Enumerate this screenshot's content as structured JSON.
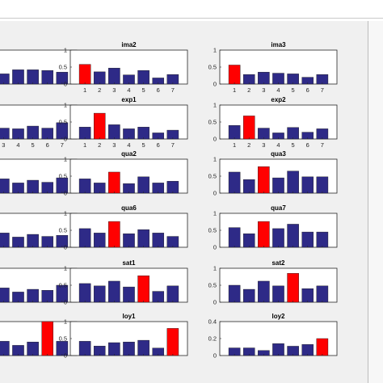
{
  "colors": {
    "bar": "#2e2a87",
    "highlight": "#ff0000",
    "axes": "#262626",
    "figure_bg": "#f0f0f0"
  },
  "chart_data": [
    {
      "type": "bar",
      "title": "",
      "categories": [
        "1",
        "2",
        "3",
        "4",
        "5",
        "6",
        "7"
      ],
      "values": [
        0.5,
        0.38,
        0.3,
        0.42,
        0.42,
        0.4,
        0.35
      ],
      "highlight_index": -1,
      "ylim": [
        0,
        1
      ],
      "yticks": [],
      "show_xticks": false
    },
    {
      "type": "bar",
      "title": "ima2",
      "categories": [
        "1",
        "2",
        "3",
        "4",
        "5",
        "6",
        "7"
      ],
      "values": [
        0.58,
        0.36,
        0.47,
        0.27,
        0.4,
        0.18,
        0.28
      ],
      "highlight_index": 0,
      "ylim": [
        0,
        1
      ],
      "yticks": [
        "0",
        "0.5",
        "1"
      ],
      "show_xticks": true
    },
    {
      "type": "bar",
      "title": "ima3",
      "categories": [
        "1",
        "2",
        "3",
        "4",
        "5",
        "6",
        "7"
      ],
      "values": [
        0.56,
        0.28,
        0.35,
        0.32,
        0.3,
        0.2,
        0.28
      ],
      "highlight_index": 0,
      "ylim": [
        0,
        1
      ],
      "yticks": [
        "0",
        "0.5",
        "1"
      ],
      "show_xticks": true
    },
    {
      "type": "bar",
      "title": "",
      "categories": [
        "1",
        "2",
        "3",
        "4",
        "5",
        "6",
        "7"
      ],
      "values": [
        0.45,
        0.4,
        0.32,
        0.3,
        0.38,
        0.32,
        0.48
      ],
      "highlight_index": -1,
      "ylim": [
        0,
        1
      ],
      "yticks": [],
      "show_xticks": true
    },
    {
      "type": "bar",
      "title": "exp1",
      "categories": [
        "1",
        "2",
        "3",
        "4",
        "5",
        "6",
        "7"
      ],
      "values": [
        0.35,
        0.76,
        0.42,
        0.3,
        0.35,
        0.18,
        0.26
      ],
      "highlight_index": 1,
      "ylim": [
        0,
        1
      ],
      "yticks": [
        "0",
        "0.5",
        "1"
      ],
      "show_xticks": true
    },
    {
      "type": "bar",
      "title": "exp2",
      "categories": [
        "1",
        "2",
        "3",
        "4",
        "5",
        "6",
        "7"
      ],
      "values": [
        0.4,
        0.68,
        0.32,
        0.18,
        0.34,
        0.2,
        0.3
      ],
      "highlight_index": 1,
      "ylim": [
        0,
        1
      ],
      "yticks": [
        "0",
        "0.5",
        "1"
      ],
      "show_xticks": true
    },
    {
      "type": "bar",
      "title": "",
      "categories": [
        "1",
        "2",
        "3",
        "4",
        "5",
        "6",
        "7"
      ],
      "values": [
        0.45,
        0.4,
        0.42,
        0.3,
        0.38,
        0.32,
        0.45
      ],
      "highlight_index": -1,
      "ylim": [
        0,
        1
      ],
      "yticks": [],
      "show_xticks": false
    },
    {
      "type": "bar",
      "title": "qua2",
      "categories": [
        "1",
        "2",
        "3",
        "4",
        "5",
        "6",
        "7"
      ],
      "values": [
        0.42,
        0.3,
        0.62,
        0.28,
        0.48,
        0.3,
        0.35
      ],
      "highlight_index": 2,
      "ylim": [
        0,
        1
      ],
      "yticks": [
        "0",
        "0.5",
        "1"
      ],
      "show_xticks": false
    },
    {
      "type": "bar",
      "title": "qua3",
      "categories": [
        "1",
        "2",
        "3",
        "4",
        "5",
        "6",
        "7"
      ],
      "values": [
        0.62,
        0.4,
        0.78,
        0.45,
        0.65,
        0.48,
        0.48
      ],
      "highlight_index": 2,
      "ylim": [
        0,
        1
      ],
      "yticks": [
        "0",
        "0.5",
        "1"
      ],
      "show_xticks": false
    },
    {
      "type": "bar",
      "title": "",
      "categories": [
        "1",
        "2",
        "3",
        "4",
        "5",
        "6",
        "7"
      ],
      "values": [
        0.45,
        0.4,
        0.42,
        0.3,
        0.38,
        0.32,
        0.35
      ],
      "highlight_index": -1,
      "ylim": [
        0,
        1
      ],
      "yticks": [],
      "show_xticks": false
    },
    {
      "type": "bar",
      "title": "qua6",
      "categories": [
        "1",
        "2",
        "3",
        "4",
        "5",
        "6",
        "7"
      ],
      "values": [
        0.55,
        0.42,
        0.76,
        0.4,
        0.52,
        0.42,
        0.32
      ],
      "highlight_index": 2,
      "ylim": [
        0,
        1
      ],
      "yticks": [
        "0",
        "0.5",
        "1"
      ],
      "show_xticks": false
    },
    {
      "type": "bar",
      "title": "qua7",
      "categories": [
        "1",
        "2",
        "3",
        "4",
        "5",
        "6",
        "7"
      ],
      "values": [
        0.58,
        0.4,
        0.76,
        0.55,
        0.68,
        0.45,
        0.45
      ],
      "highlight_index": 2,
      "ylim": [
        0,
        1
      ],
      "yticks": [
        "0",
        "0.5",
        "1"
      ],
      "show_xticks": false
    },
    {
      "type": "bar",
      "title": "",
      "categories": [
        "1",
        "2",
        "3",
        "4",
        "5",
        "6",
        "7"
      ],
      "values": [
        0.45,
        0.4,
        0.42,
        0.3,
        0.38,
        0.35,
        0.5
      ],
      "highlight_index": -1,
      "ylim": [
        0,
        1
      ],
      "yticks": [],
      "show_xticks": false
    },
    {
      "type": "bar",
      "title": "sat1",
      "categories": [
        "1",
        "2",
        "3",
        "4",
        "5",
        "6",
        "7"
      ],
      "values": [
        0.55,
        0.48,
        0.62,
        0.45,
        0.78,
        0.32,
        0.48
      ],
      "highlight_index": 4,
      "ylim": [
        0,
        1
      ],
      "yticks": [
        "0",
        "0.5",
        "1"
      ],
      "show_xticks": false
    },
    {
      "type": "bar",
      "title": "sat2",
      "categories": [
        "1",
        "2",
        "3",
        "4",
        "5",
        "6",
        "7"
      ],
      "values": [
        0.5,
        0.38,
        0.62,
        0.48,
        0.85,
        0.4,
        0.48
      ],
      "highlight_index": 4,
      "ylim": [
        0,
        1
      ],
      "yticks": [
        "0",
        "0.5",
        "1"
      ],
      "show_xticks": false
    },
    {
      "type": "bar",
      "title": "",
      "categories": [
        "1",
        "2",
        "3",
        "4",
        "5",
        "6",
        "7"
      ],
      "values": [
        0.45,
        0.4,
        0.42,
        0.3,
        0.4,
        1.0,
        0.42
      ],
      "highlight_index": 5,
      "ylim": [
        0,
        1
      ],
      "yticks": [],
      "show_xticks": false
    },
    {
      "type": "bar",
      "title": "loy1",
      "categories": [
        "1",
        "2",
        "3",
        "4",
        "5",
        "6",
        "7"
      ],
      "values": [
        0.42,
        0.28,
        0.38,
        0.4,
        0.45,
        0.22,
        0.8
      ],
      "highlight_index": 6,
      "ylim": [
        0,
        1
      ],
      "yticks": [
        "0",
        "0.5",
        "1"
      ],
      "show_xticks": false
    },
    {
      "type": "bar",
      "title": "loy2",
      "categories": [
        "1",
        "2",
        "3",
        "4",
        "5",
        "6",
        "7"
      ],
      "values": [
        0.09,
        0.09,
        0.06,
        0.14,
        0.11,
        0.13,
        0.2
      ],
      "highlight_index": 6,
      "ylim": [
        0,
        0.4
      ],
      "yticks": [
        "0",
        "0.2",
        "0.4"
      ],
      "show_xticks": false
    }
  ]
}
